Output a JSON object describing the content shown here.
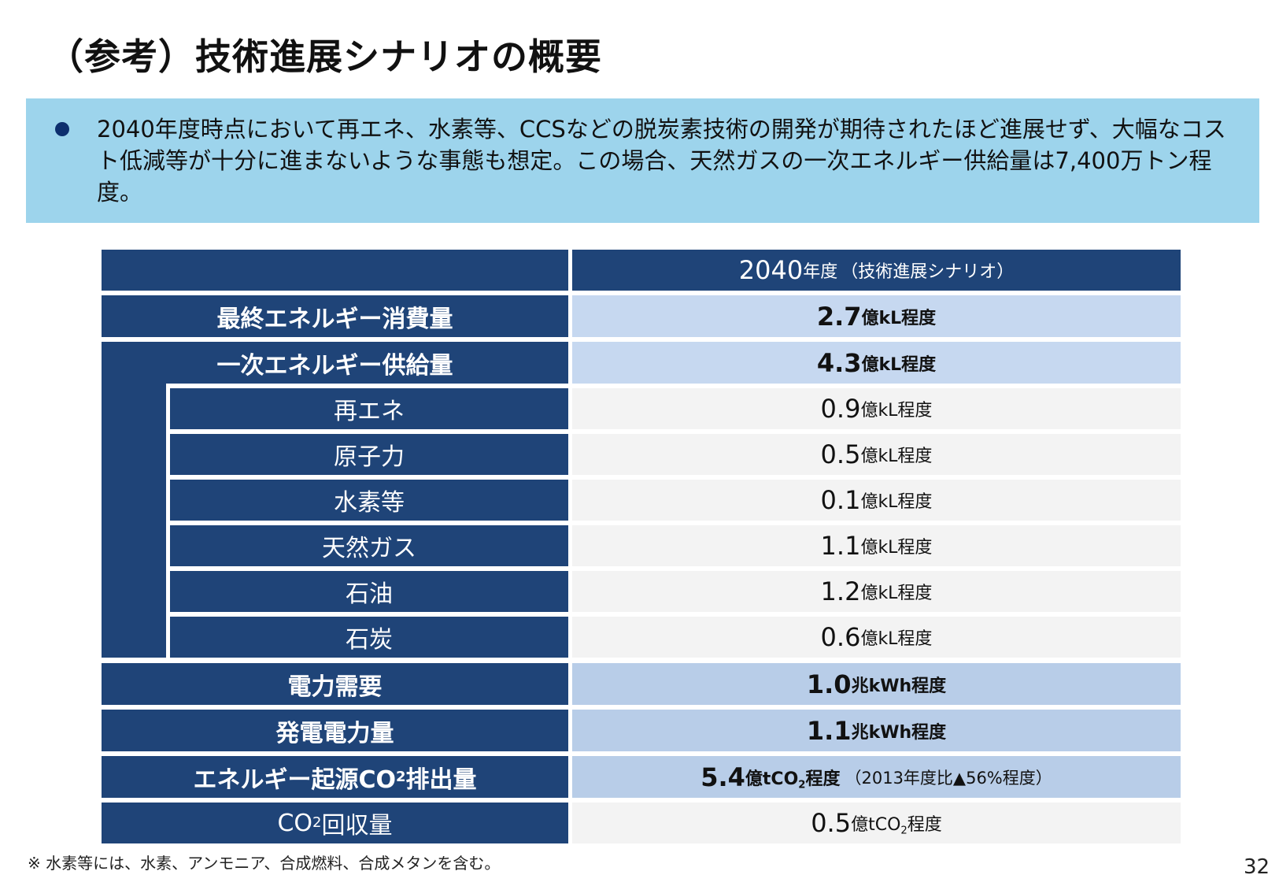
{
  "title": "（参考）技術進展シナリオの概要",
  "summary": "2040年度時点において再エネ、水素等、CCSなどの脱炭素技術の開発が期待されたほど進展せず、大幅なコスト低減等が十分に進まないような事態も想定。この場合、天然ガスの一次エネルギー供給量は7,400万トン程度。",
  "table": {
    "header": {
      "year": "2040",
      "unit": "年度",
      "scenario": "（技術進展シナリオ）"
    },
    "rows": {
      "final_energy": {
        "label": "最終エネルギー消費量",
        "value": "2.7",
        "unit": "億kL程度"
      },
      "primary_energy": {
        "label": "一次エネルギー供給量",
        "value": "4.3",
        "unit": "億kL程度"
      },
      "renewables": {
        "label": "再エネ",
        "value": "0.9",
        "unit": "億kL程度"
      },
      "nuclear": {
        "label": "原子力",
        "value": "0.5",
        "unit": "億kL程度"
      },
      "hydrogen": {
        "label": "水素等",
        "value": "0.1",
        "unit": "億kL程度"
      },
      "natural_gas": {
        "label": "天然ガス",
        "value": "1.1",
        "unit": "億kL程度"
      },
      "oil": {
        "label": "石油",
        "value": "1.2",
        "unit": "億kL程度"
      },
      "coal": {
        "label": "石炭",
        "value": "0.6",
        "unit": "億kL程度"
      },
      "power_demand": {
        "label": "電力需要",
        "value": "1.0",
        "unit": "兆kWh程度"
      },
      "generation": {
        "label": "発電電力量",
        "value": "1.1",
        "unit": "兆kWh程度"
      },
      "co2_emissions": {
        "label_prefix": "エネルギー起源CO",
        "label_sub": "2",
        "label_suffix": "排出量",
        "value": "5.4",
        "unit_prefix": "億tCO",
        "unit_sub": "2",
        "unit_suffix": "程度",
        "note": "（2013年度比▲56%程度）"
      },
      "co2_capture": {
        "label_prefix": "CO",
        "label_sub": "2",
        "label_suffix": "回収量",
        "value": "0.5",
        "unit_prefix": "億tCO",
        "unit_sub": "2",
        "unit_suffix": "程度"
      }
    }
  },
  "footnote": "※ 水素等には、水素、アンモニア、合成燃料、合成メタンを含む。",
  "page_number": "32",
  "colors": {
    "header_navy": "#1f4478",
    "summary_bg": "#9dd4ec",
    "value_highlight": "#c6d8f0",
    "value_plain": "#f3f3f3",
    "bullet": "#0d2f6e"
  }
}
